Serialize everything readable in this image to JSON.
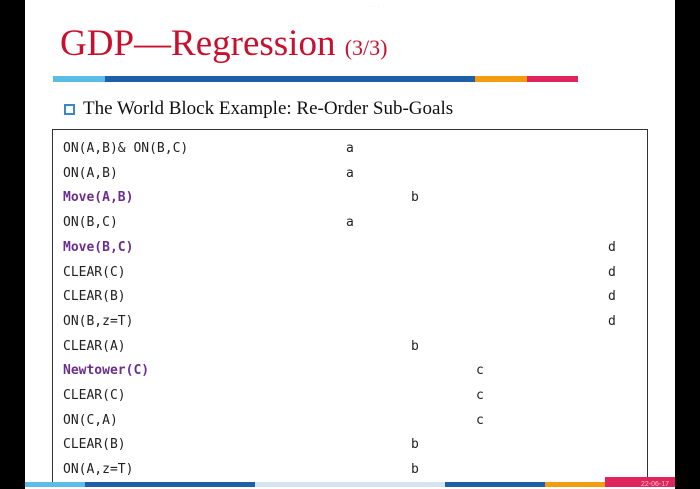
{
  "slide": {
    "title_main": "GDP—Regression",
    "title_sub": "(3/3)",
    "bullet": "The World Block Example: Re-Order Sub-Goals",
    "page_number": "22-06-17"
  },
  "colors": {
    "title": "#c8102e",
    "action": "#6b2e8e",
    "bullet_box": "#3a86c8",
    "bar_light_blue": "#5bbde6",
    "bar_blue": "#1f5fa8",
    "bar_orange": "#f39c12",
    "bar_red": "#e0245e"
  },
  "rows": [
    {
      "goal": "ON(A,B)& ON(B,C)",
      "action": false,
      "mark": "a"
    },
    {
      "goal": "ON(A,B)",
      "action": false,
      "mark": "a"
    },
    {
      "goal": "Move(A,B)",
      "action": true,
      "mark": "b"
    },
    {
      "goal": "ON(B,C)",
      "action": false,
      "mark": "a"
    },
    {
      "goal": "Move(B,C)",
      "action": true,
      "mark": "d"
    },
    {
      "goal": "CLEAR(C)",
      "action": false,
      "mark": "d"
    },
    {
      "goal": "CLEAR(B)",
      "action": false,
      "mark": "d"
    },
    {
      "goal": "ON(B,z=T)",
      "action": false,
      "mark": "d"
    },
    {
      "goal": "CLEAR(A)",
      "action": false,
      "mark": "b"
    },
    {
      "goal": "Newtower(C)",
      "action": true,
      "mark": "c"
    },
    {
      "goal": "CLEAR(C)",
      "action": false,
      "mark": "c"
    },
    {
      "goal": "ON(C,A)",
      "action": false,
      "mark": "c"
    },
    {
      "goal": "CLEAR(B)",
      "action": false,
      "mark": "b"
    },
    {
      "goal": "ON(A,z=T)",
      "action": false,
      "mark": "b"
    }
  ]
}
